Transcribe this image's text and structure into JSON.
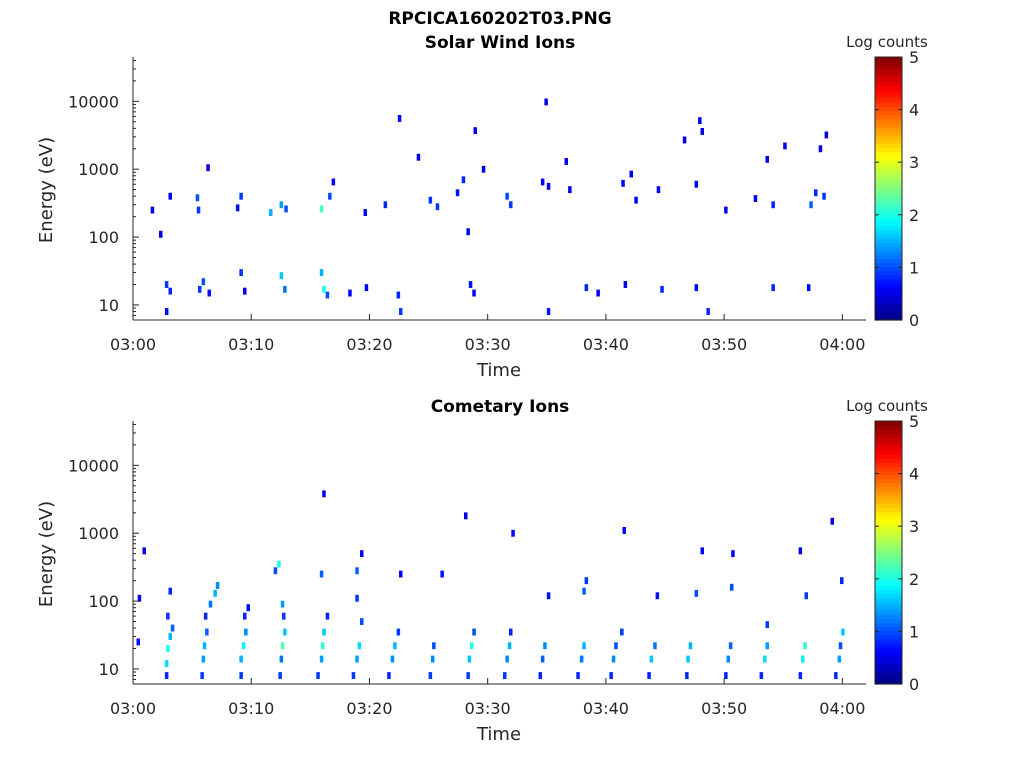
{
  "figure_title": "RPCICA160202T03.PNG",
  "chart_data": [
    {
      "type": "heatmap",
      "title": "Solar Wind Ions",
      "xlabel": "Time",
      "ylabel": "Energy (eV)",
      "x_ticks": [
        "03:00",
        "03:10",
        "03:20",
        "03:30",
        "03:40",
        "03:50",
        "04:00"
      ],
      "xlim_minutes": [
        0,
        62
      ],
      "y_scale": "log",
      "y_ticks": [
        10,
        100,
        1000,
        10000
      ],
      "y_tick_labels": [
        "10",
        "100",
        "1000",
        "10000"
      ],
      "ylim": [
        6,
        45000
      ],
      "colorbar": {
        "label": "Log counts",
        "ticks": [
          "0",
          "1",
          "2",
          "3",
          "4",
          "5"
        ],
        "range": [
          0,
          5
        ],
        "colormap": "jet"
      },
      "cells": [
        [
          2.7,
          8,
          0.3,
          0.6
        ],
        [
          2.7,
          20,
          0.3,
          0.9
        ],
        [
          3.0,
          16,
          0.3,
          0.8
        ],
        [
          5.5,
          17,
          0.3,
          0.9
        ],
        [
          5.8,
          22,
          0.3,
          1.0
        ],
        [
          6.3,
          15,
          0.3,
          0.7
        ],
        [
          9.0,
          30,
          0.3,
          0.9
        ],
        [
          9.3,
          16,
          0.3,
          0.6
        ],
        [
          12.4,
          27,
          0.3,
          1.6
        ],
        [
          12.7,
          17,
          0.3,
          1.2
        ],
        [
          15.8,
          30,
          0.3,
          1.5
        ],
        [
          16.0,
          17,
          0.3,
          2.0
        ],
        [
          16.3,
          14,
          0.3,
          1.0
        ],
        [
          18.2,
          15,
          0.3,
          0.6
        ],
        [
          19.6,
          18,
          0.3,
          0.6
        ],
        [
          22.3,
          14,
          0.3,
          0.8
        ],
        [
          22.5,
          8,
          0.3,
          0.9
        ],
        [
          28.4,
          20,
          0.3,
          0.7
        ],
        [
          28.7,
          15,
          0.3,
          0.6
        ],
        [
          35.0,
          8,
          0.3,
          0.7
        ],
        [
          38.2,
          18,
          0.3,
          0.8
        ],
        [
          39.2,
          15,
          0.3,
          0.6
        ],
        [
          41.5,
          20,
          0.3,
          0.6
        ],
        [
          44.6,
          17,
          0.3,
          0.8
        ],
        [
          47.5,
          18,
          0.3,
          0.6
        ],
        [
          48.5,
          8,
          0.3,
          0.8
        ],
        [
          54.0,
          18,
          0.3,
          0.8
        ],
        [
          57.0,
          18,
          0.3,
          0.6
        ],
        [
          1.5,
          250,
          0.3,
          0.5
        ],
        [
          2.2,
          110,
          0.3,
          0.5
        ],
        [
          3.0,
          400,
          0.3,
          0.6
        ],
        [
          5.3,
          380,
          0.3,
          1.0
        ],
        [
          5.4,
          250,
          0.3,
          0.9
        ],
        [
          8.7,
          270,
          0.3,
          0.7
        ],
        [
          9.0,
          400,
          0.3,
          0.9
        ],
        [
          11.5,
          230,
          0.3,
          1.5
        ],
        [
          12.4,
          300,
          0.3,
          1.4
        ],
        [
          12.8,
          260,
          0.3,
          1.0
        ],
        [
          15.8,
          260,
          0.3,
          2.2
        ],
        [
          16.5,
          400,
          0.3,
          1.0
        ],
        [
          19.5,
          230,
          0.3,
          0.6
        ],
        [
          21.2,
          300,
          0.3,
          0.8
        ],
        [
          25.0,
          350,
          0.3,
          0.9
        ],
        [
          25.6,
          280,
          0.3,
          0.9
        ],
        [
          27.3,
          450,
          0.3,
          0.7
        ],
        [
          27.8,
          700,
          0.3,
          0.8
        ],
        [
          28.2,
          120,
          0.3,
          0.6
        ],
        [
          31.5,
          400,
          0.3,
          1.0
        ],
        [
          31.8,
          300,
          0.3,
          0.9
        ],
        [
          34.5,
          650,
          0.3,
          0.6
        ],
        [
          35.0,
          560,
          0.3,
          0.6
        ],
        [
          36.8,
          500,
          0.3,
          0.6
        ],
        [
          41.3,
          620,
          0.3,
          0.6
        ],
        [
          42.4,
          350,
          0.3,
          0.5
        ],
        [
          44.3,
          500,
          0.3,
          0.6
        ],
        [
          47.5,
          600,
          0.3,
          0.6
        ],
        [
          50.0,
          250,
          0.3,
          0.5
        ],
        [
          52.5,
          370,
          0.3,
          0.6
        ],
        [
          54.0,
          300,
          0.3,
          0.8
        ],
        [
          57.2,
          300,
          0.3,
          1.1
        ],
        [
          57.6,
          450,
          0.3,
          0.8
        ],
        [
          58.3,
          400,
          0.3,
          0.9
        ],
        [
          6.2,
          1050,
          0.3,
          0.5
        ],
        [
          16.8,
          650,
          0.3,
          0.6
        ],
        [
          22.4,
          5600,
          0.3,
          0.6
        ],
        [
          24.0,
          1500,
          0.3,
          0.5
        ],
        [
          28.8,
          3700,
          0.3,
          0.6
        ],
        [
          29.5,
          1000,
          0.3,
          0.5
        ],
        [
          34.8,
          9800,
          0.3,
          0.5
        ],
        [
          36.5,
          1300,
          0.3,
          0.5
        ],
        [
          42.0,
          850,
          0.3,
          0.5
        ],
        [
          46.5,
          2700,
          0.3,
          0.5
        ],
        [
          47.8,
          5200,
          0.3,
          0.5
        ],
        [
          48.0,
          3600,
          0.3,
          0.5
        ],
        [
          53.5,
          1400,
          0.3,
          0.5
        ],
        [
          55.0,
          2200,
          0.3,
          0.5
        ],
        [
          58.0,
          2000,
          0.3,
          0.5
        ],
        [
          58.5,
          3200,
          0.3,
          0.5
        ]
      ]
    },
    {
      "type": "heatmap",
      "title": "Cometary Ions",
      "xlabel": "Time",
      "ylabel": "Energy (eV)",
      "x_ticks": [
        "03:00",
        "03:10",
        "03:20",
        "03:30",
        "03:40",
        "03:50",
        "04:00"
      ],
      "xlim_minutes": [
        0,
        62
      ],
      "y_scale": "log",
      "y_ticks": [
        10,
        100,
        1000,
        10000
      ],
      "y_tick_labels": [
        "10",
        "100",
        "1000",
        "10000"
      ],
      "ylim": [
        6,
        45000
      ],
      "colorbar": {
        "label": "Log counts",
        "ticks": [
          "0",
          "1",
          "2",
          "3",
          "4",
          "5"
        ],
        "range": [
          0,
          5
        ],
        "colormap": "jet"
      },
      "cells": [
        [
          0.3,
          25,
          0.3,
          0.7
        ],
        [
          0.4,
          110,
          0.3,
          0.6
        ],
        [
          0.8,
          550,
          0.3,
          0.5
        ],
        [
          2.7,
          8,
          0.3,
          0.8
        ],
        [
          2.7,
          12,
          0.3,
          1.7
        ],
        [
          2.8,
          20,
          0.3,
          2.0
        ],
        [
          3.0,
          30,
          0.3,
          1.5
        ],
        [
          3.2,
          40,
          0.3,
          1.1
        ],
        [
          2.8,
          60,
          0.3,
          0.9
        ],
        [
          3.0,
          140,
          0.3,
          0.8
        ],
        [
          5.7,
          8,
          0.3,
          0.9
        ],
        [
          5.8,
          14,
          0.3,
          1.4
        ],
        [
          5.9,
          22,
          0.3,
          1.5
        ],
        [
          6.1,
          35,
          0.3,
          1.1
        ],
        [
          6.0,
          60,
          0.3,
          0.8
        ],
        [
          6.4,
          90,
          0.3,
          1.2
        ],
        [
          6.8,
          130,
          0.3,
          1.5
        ],
        [
          7.0,
          170,
          0.3,
          1.3
        ],
        [
          9.0,
          8,
          0.3,
          0.9
        ],
        [
          9.0,
          14,
          0.3,
          1.5
        ],
        [
          9.2,
          22,
          0.3,
          1.8
        ],
        [
          9.4,
          35,
          0.3,
          1.3
        ],
        [
          9.3,
          60,
          0.3,
          0.8
        ],
        [
          9.6,
          80,
          0.3,
          0.7
        ],
        [
          12.3,
          8,
          0.3,
          0.9
        ],
        [
          12.4,
          14,
          0.3,
          1.2
        ],
        [
          12.5,
          22,
          0.3,
          2.3
        ],
        [
          12.7,
          35,
          0.3,
          1.6
        ],
        [
          12.6,
          60,
          0.3,
          0.9
        ],
        [
          12.5,
          90,
          0.3,
          1.4
        ],
        [
          11.9,
          280,
          0.3,
          1.0
        ],
        [
          12.2,
          350,
          0.3,
          2.0
        ],
        [
          15.5,
          8,
          0.3,
          0.9
        ],
        [
          15.8,
          14,
          0.3,
          1.4
        ],
        [
          15.9,
          22,
          0.3,
          2.1
        ],
        [
          16.0,
          35,
          0.3,
          1.6
        ],
        [
          16.3,
          60,
          0.3,
          0.8
        ],
        [
          15.8,
          250,
          0.3,
          1.1
        ],
        [
          16.0,
          3800,
          0.3,
          0.5
        ],
        [
          18.5,
          8,
          0.3,
          0.9
        ],
        [
          18.8,
          14,
          0.3,
          1.4
        ],
        [
          19.0,
          22,
          0.3,
          1.7
        ],
        [
          19.2,
          50,
          0.3,
          1.0
        ],
        [
          18.8,
          110,
          0.3,
          0.9
        ],
        [
          18.8,
          280,
          0.3,
          1.1
        ],
        [
          19.2,
          500,
          0.3,
          0.6
        ],
        [
          21.5,
          8,
          0.3,
          0.8
        ],
        [
          21.8,
          14,
          0.3,
          1.3
        ],
        [
          22.0,
          22,
          0.3,
          1.5
        ],
        [
          22.3,
          35,
          0.3,
          0.9
        ],
        [
          22.5,
          250,
          0.3,
          0.6
        ],
        [
          25.0,
          8,
          0.3,
          0.9
        ],
        [
          25.2,
          14,
          0.3,
          1.3
        ],
        [
          25.3,
          22,
          0.3,
          1.0
        ],
        [
          26.0,
          250,
          0.3,
          0.7
        ],
        [
          28.2,
          8,
          0.3,
          0.9
        ],
        [
          28.3,
          14,
          0.3,
          1.6
        ],
        [
          28.5,
          22,
          0.3,
          2.0
        ],
        [
          28.7,
          35,
          0.3,
          1.0
        ],
        [
          28.0,
          1800,
          0.3,
          0.5
        ],
        [
          31.3,
          8,
          0.3,
          0.9
        ],
        [
          31.5,
          14,
          0.3,
          1.3
        ],
        [
          31.7,
          22,
          0.3,
          1.5
        ],
        [
          31.8,
          35,
          0.3,
          0.8
        ],
        [
          32.0,
          1000,
          0.3,
          0.6
        ],
        [
          34.3,
          8,
          0.3,
          0.8
        ],
        [
          34.5,
          14,
          0.3,
          1.1
        ],
        [
          34.7,
          22,
          0.3,
          1.3
        ],
        [
          35.0,
          120,
          0.3,
          0.7
        ],
        [
          37.5,
          8,
          0.3,
          0.8
        ],
        [
          37.8,
          14,
          0.3,
          1.2
        ],
        [
          38.0,
          22,
          0.3,
          1.5
        ],
        [
          38.0,
          140,
          0.3,
          1.1
        ],
        [
          38.2,
          200,
          0.3,
          0.9
        ],
        [
          40.3,
          8,
          0.3,
          0.8
        ],
        [
          40.5,
          14,
          0.3,
          1.3
        ],
        [
          40.7,
          22,
          0.3,
          1.0
        ],
        [
          41.2,
          35,
          0.3,
          0.9
        ],
        [
          41.4,
          1100,
          0.3,
          0.6
        ],
        [
          43.5,
          8,
          0.3,
          0.8
        ],
        [
          43.7,
          14,
          0.3,
          1.6
        ],
        [
          44.0,
          22,
          0.3,
          1.2
        ],
        [
          44.2,
          120,
          0.3,
          0.7
        ],
        [
          46.7,
          8,
          0.3,
          0.8
        ],
        [
          46.8,
          14,
          0.3,
          1.6
        ],
        [
          47.0,
          22,
          0.3,
          1.5
        ],
        [
          47.5,
          130,
          0.3,
          1.0
        ],
        [
          48.0,
          550,
          0.3,
          0.6
        ],
        [
          50.0,
          8,
          0.3,
          0.8
        ],
        [
          50.2,
          14,
          0.3,
          1.3
        ],
        [
          50.4,
          22,
          0.3,
          1.1
        ],
        [
          50.5,
          160,
          0.3,
          1.0
        ],
        [
          50.6,
          500,
          0.3,
          0.6
        ],
        [
          53.0,
          8,
          0.3,
          0.8
        ],
        [
          53.3,
          14,
          0.3,
          1.7
        ],
        [
          53.5,
          22,
          0.3,
          1.4
        ],
        [
          53.5,
          45,
          0.3,
          0.9
        ],
        [
          56.3,
          8,
          0.3,
          0.8
        ],
        [
          56.5,
          14,
          0.3,
          1.8
        ],
        [
          56.7,
          22,
          0.3,
          2.1
        ],
        [
          56.8,
          120,
          0.3,
          0.9
        ],
        [
          56.3,
          550,
          0.3,
          0.5
        ],
        [
          59.3,
          8,
          0.3,
          0.8
        ],
        [
          59.6,
          14,
          0.3,
          1.4
        ],
        [
          59.7,
          22,
          0.3,
          1.0
        ],
        [
          59.9,
          35,
          0.3,
          1.6
        ],
        [
          59.8,
          200,
          0.3,
          0.8
        ],
        [
          59.0,
          1500,
          0.3,
          0.5
        ]
      ]
    }
  ]
}
